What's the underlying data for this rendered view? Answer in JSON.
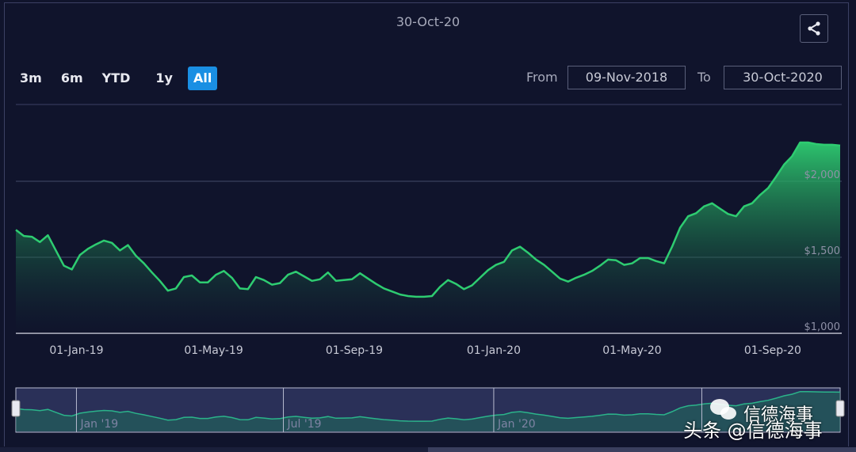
{
  "header": {
    "title": "30-Oct-20",
    "share_icon": "share-icon"
  },
  "range_selector": {
    "buttons": [
      "3m",
      "6m",
      "YTD",
      "1y",
      "All"
    ],
    "selected": "All",
    "accent": "#1a8fe3"
  },
  "date_range": {
    "from_label": "From",
    "from_value": "09-Nov-2018",
    "to_label": "To",
    "to_value": "30-Oct-2020"
  },
  "chart_data": {
    "type": "area",
    "title": "30-Oct-20",
    "xlabel": "",
    "ylabel": "",
    "ylim": [
      1000,
      2300
    ],
    "xlim": [
      "2018-11-09",
      "2020-10-30"
    ],
    "grid": true,
    "line_color": "#2ecc71",
    "y_ticks": [
      {
        "value": 1000,
        "label": "$1,000"
      },
      {
        "value": 1500,
        "label": "$1,500"
      },
      {
        "value": 2000,
        "label": "$2,000"
      }
    ],
    "x_ticks": [
      {
        "date": "2019-01-01",
        "label": "01-Jan-19"
      },
      {
        "date": "2019-05-01",
        "label": "01-May-19"
      },
      {
        "date": "2019-09-01",
        "label": "01-Sep-19"
      },
      {
        "date": "2020-01-01",
        "label": "01-Jan-20"
      },
      {
        "date": "2020-05-01",
        "label": "01-May-20"
      },
      {
        "date": "2020-09-01",
        "label": "01-Sep-20"
      }
    ],
    "x": [
      "2018-11-09",
      "2018-11-16",
      "2018-11-23",
      "2018-11-30",
      "2018-12-07",
      "2018-12-14",
      "2018-12-21",
      "2018-12-28",
      "2019-01-04",
      "2019-01-11",
      "2019-01-18",
      "2019-01-25",
      "2019-02-01",
      "2019-02-08",
      "2019-02-15",
      "2019-02-22",
      "2019-03-01",
      "2019-03-08",
      "2019-03-15",
      "2019-03-22",
      "2019-03-29",
      "2019-04-05",
      "2019-04-12",
      "2019-04-19",
      "2019-04-26",
      "2019-05-03",
      "2019-05-10",
      "2019-05-17",
      "2019-05-24",
      "2019-05-31",
      "2019-06-07",
      "2019-06-14",
      "2019-06-21",
      "2019-06-28",
      "2019-07-05",
      "2019-07-12",
      "2019-07-19",
      "2019-07-26",
      "2019-08-02",
      "2019-08-09",
      "2019-08-16",
      "2019-08-23",
      "2019-08-30",
      "2019-09-06",
      "2019-09-13",
      "2019-09-20",
      "2019-09-27",
      "2019-10-04",
      "2019-10-11",
      "2019-10-18",
      "2019-10-25",
      "2019-11-01",
      "2019-11-08",
      "2019-11-15",
      "2019-11-22",
      "2019-11-29",
      "2019-12-06",
      "2019-12-13",
      "2019-12-20",
      "2019-12-27",
      "2020-01-03",
      "2020-01-10",
      "2020-01-17",
      "2020-01-24",
      "2020-01-31",
      "2020-02-07",
      "2020-02-14",
      "2020-02-21",
      "2020-02-28",
      "2020-03-06",
      "2020-03-13",
      "2020-03-20",
      "2020-03-27",
      "2020-04-03",
      "2020-04-10",
      "2020-04-17",
      "2020-04-24",
      "2020-05-01",
      "2020-05-08",
      "2020-05-15",
      "2020-05-22",
      "2020-05-29",
      "2020-06-05",
      "2020-06-12",
      "2020-06-19",
      "2020-06-26",
      "2020-07-03",
      "2020-07-10",
      "2020-07-17",
      "2020-07-24",
      "2020-07-31",
      "2020-08-07",
      "2020-08-14",
      "2020-08-21",
      "2020-08-28",
      "2020-09-04",
      "2020-09-11",
      "2020-09-18",
      "2020-09-25",
      "2020-10-02",
      "2020-10-09",
      "2020-10-16",
      "2020-10-23",
      "2020-10-30"
    ],
    "values": [
      1680,
      1640,
      1635,
      1600,
      1645,
      1545,
      1445,
      1420,
      1515,
      1555,
      1585,
      1610,
      1595,
      1545,
      1580,
      1510,
      1460,
      1400,
      1345,
      1280,
      1295,
      1370,
      1380,
      1335,
      1335,
      1385,
      1410,
      1365,
      1295,
      1290,
      1370,
      1350,
      1320,
      1330,
      1385,
      1405,
      1375,
      1345,
      1355,
      1400,
      1345,
      1350,
      1355,
      1395,
      1360,
      1325,
      1295,
      1275,
      1255,
      1245,
      1240,
      1240,
      1245,
      1305,
      1350,
      1325,
      1290,
      1315,
      1365,
      1415,
      1450,
      1470,
      1545,
      1570,
      1530,
      1485,
      1450,
      1405,
      1360,
      1340,
      1365,
      1385,
      1410,
      1445,
      1485,
      1480,
      1450,
      1460,
      1495,
      1495,
      1475,
      1460,
      1570,
      1695,
      1770,
      1790,
      1835,
      1855,
      1820,
      1785,
      1770,
      1835,
      1855,
      1910,
      1955,
      2030,
      2110,
      2165,
      2255,
      2255,
      2245,
      2240,
      2240,
      2235
    ]
  },
  "navigator": {
    "labels": [
      {
        "date": "2019-01-01",
        "label": "Jan '19"
      },
      {
        "date": "2019-07-01",
        "label": "Jul '19"
      },
      {
        "date": "2020-01-01",
        "label": "Jan '20"
      },
      {
        "date": "2020-07-01",
        "label": ""
      }
    ],
    "line_color": "#2bb38a"
  },
  "watermark": {
    "line1": "信德海事",
    "line2": "头条 @信德海事"
  }
}
